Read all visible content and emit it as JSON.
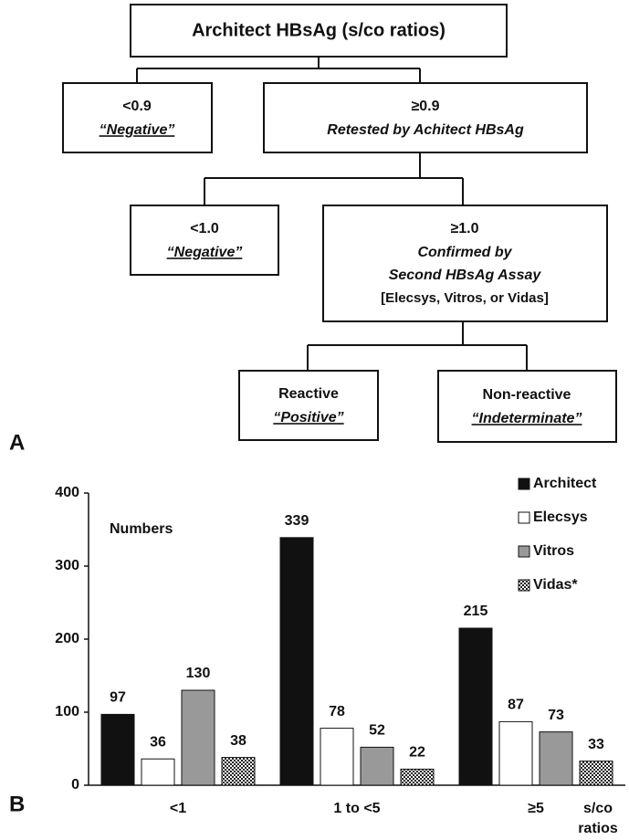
{
  "panel_labels": [
    "A",
    "B"
  ],
  "diagram": {
    "nodes": [
      {
        "lines": [
          "Architect HBsAg (s/co ratios)"
        ]
      },
      {
        "lines": [
          "<0.9",
          "“Negative”"
        ]
      },
      {
        "lines": [
          "≥0.9",
          "Retested by Achitect HBsAg"
        ]
      },
      {
        "lines": [
          "<1.0",
          "“Negative”"
        ]
      },
      {
        "lines": [
          "≥1.0",
          "Confirmed by",
          "Second HBsAg Assay",
          "[Elecsys, Vitros, or Vidas]"
        ]
      },
      {
        "lines": [
          "Reactive",
          "“Positive”"
        ]
      },
      {
        "lines": [
          "Non-reactive",
          "“Indeterminate”"
        ]
      }
    ]
  },
  "chart_data": {
    "type": "bar",
    "annotation": "Numbers",
    "categories": [
      "<1",
      "1 to <5",
      "≥5"
    ],
    "x_label": [
      "s/co",
      "ratios"
    ],
    "series": [
      {
        "name": "Architect",
        "color": "#111111",
        "values": [
          97,
          339,
          215
        ]
      },
      {
        "name": "Elecsys",
        "color": "#ffffff",
        "values": [
          36,
          78,
          87
        ]
      },
      {
        "name": "Vitros",
        "color": "#999999",
        "values": [
          130,
          52,
          73
        ]
      },
      {
        "name": "Vidas*",
        "color": "#ffffff",
        "pattern": "checker",
        "values": [
          38,
          22,
          33
        ]
      }
    ],
    "ylim": [
      0,
      400
    ],
    "yticks": [
      0,
      100,
      200,
      300,
      400
    ],
    "grid": false,
    "legend": "top-right"
  }
}
